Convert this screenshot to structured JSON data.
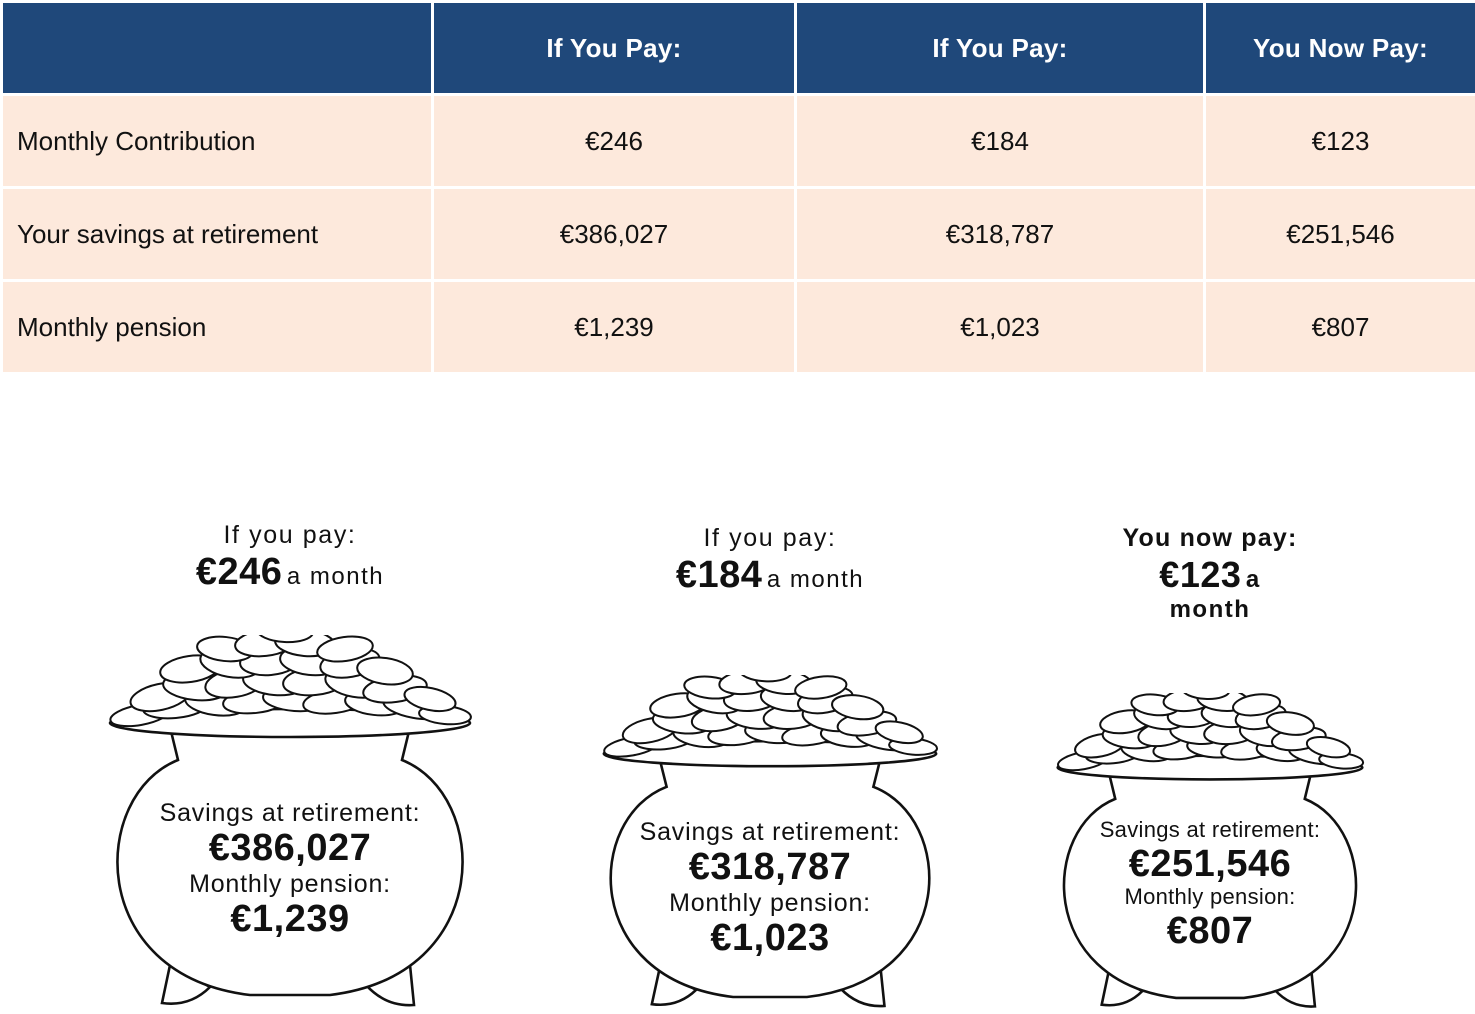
{
  "table": {
    "headers": [
      "",
      "If You Pay:",
      "If You Pay:",
      "You Now Pay:"
    ],
    "rows": [
      {
        "label": "Monthly Contribution",
        "values": [
          "€246",
          "€184",
          "€123"
        ]
      },
      {
        "label": "Your savings at retirement",
        "values": [
          "€386,027",
          "€318,787",
          "€251,546"
        ]
      },
      {
        "label": "Monthly pension",
        "values": [
          "€1,239",
          "€1,023",
          "€807"
        ]
      }
    ]
  },
  "pots": [
    {
      "heading": "If you pay:",
      "amount": "€246",
      "unit": "a month",
      "savings_label": "Savings  at  retirement:",
      "savings": "€386,027",
      "pension_label": "Monthly  pension:",
      "pension": "€1,239"
    },
    {
      "heading": "If you pay:",
      "amount": "€184",
      "unit": "a month",
      "savings_label": "Savings at retirement:",
      "savings": "€318,787",
      "pension_label": "Monthly pension:",
      "pension": "€1,023"
    },
    {
      "heading": "You now pay:",
      "amount": "€123",
      "unit": "a",
      "unit_line2": "month",
      "savings_label": "Savings at retirement:",
      "savings": "€251,546",
      "pension_label": "Monthly pension:",
      "pension": "€807"
    }
  ],
  "colors": {
    "header_bg": "#1f487a",
    "row_bg": "#fde9dc",
    "header_text": "#ffffff"
  },
  "icons": [
    "coin-pot-icon"
  ]
}
